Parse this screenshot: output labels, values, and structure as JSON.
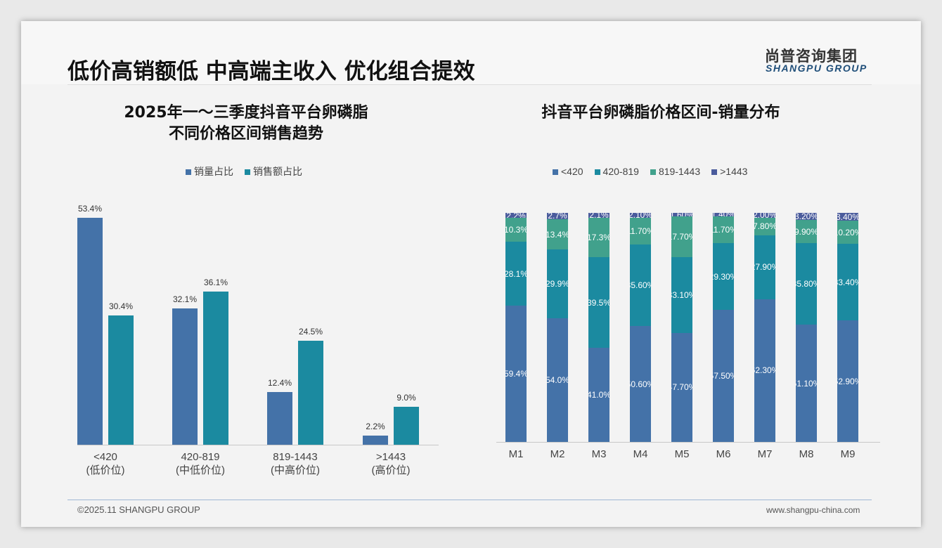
{
  "header": {
    "title": "低价高销额低 中高端主收入 优化组合提效",
    "logo_cn": "尚普咨询集团",
    "logo_en": "SHANGPU GROUP"
  },
  "footer": {
    "copyright": "©2025.11 SHANGPU GROUP",
    "url": "www.shangpu-china.com"
  },
  "colors": {
    "blue": "#4472a8",
    "teal": "#1b8aa0",
    "green": "#41a18c",
    "navy": "#4a5b9c"
  },
  "chart_data": [
    {
      "type": "bar",
      "title_line1": "2025年一～三季度抖音平台卵磷脂",
      "title_line2": "不同价格区间销售趋势",
      "categories": [
        "<420",
        "420-819",
        "819-1443",
        ">1443"
      ],
      "category_sub": [
        "(低价位)",
        "(中低价位)",
        "(中高价位)",
        "(高价位)"
      ],
      "series": [
        {
          "name": "销量占比",
          "values": [
            53.4,
            32.1,
            12.4,
            2.2
          ],
          "labels": [
            "53.4%",
            "32.1%",
            "12.4%",
            "2.2%"
          ]
        },
        {
          "name": "销售额占比",
          "values": [
            30.4,
            36.1,
            24.5,
            9.0
          ],
          "labels": [
            "30.4%",
            "36.1%",
            "24.5%",
            "9.0%"
          ]
        }
      ],
      "ylim": [
        0,
        60
      ]
    },
    {
      "type": "bar",
      "stacked": true,
      "title": "抖音平台卵磷脂价格区间-销量分布",
      "categories": [
        "M1",
        "M2",
        "M3",
        "M4",
        "M5",
        "M6",
        "M7",
        "M8",
        "M9"
      ],
      "series": [
        {
          "name": "<420",
          "values": [
            59.4,
            54.0,
            41.0,
            50.6,
            47.7,
            57.5,
            62.3,
            51.1,
            52.9
          ],
          "labels": [
            "59.4%",
            "54.0%",
            "41.0%",
            "50.60%",
            "47.70%",
            "57.50%",
            "62.30%",
            "51.10%",
            "52.90%"
          ]
        },
        {
          "name": "420-819",
          "values": [
            28.1,
            29.9,
            39.5,
            35.6,
            33.1,
            29.3,
            27.9,
            35.8,
            33.4
          ],
          "labels": [
            "28.1%",
            "29.9%",
            "39.5%",
            "35.60%",
            "33.10%",
            "29.30%",
            "27.90%",
            "35.80%",
            "33.40%"
          ]
        },
        {
          "name": "819-1443",
          "values": [
            10.3,
            13.4,
            17.3,
            11.7,
            17.7,
            11.7,
            7.8,
            9.9,
            10.2
          ],
          "labels": [
            "10.3%",
            "13.4%",
            "17.3%",
            "11.70%",
            "17.70%",
            "11.70%",
            "7.80%",
            "9.90%",
            "10.20%"
          ]
        },
        {
          "name": ">1443",
          "values": [
            2.2,
            2.7,
            2.1,
            2.1,
            1.6,
            1.4,
            2.0,
            3.2,
            3.4
          ],
          "labels": [
            "2.2%",
            "2.7%",
            "2.1%",
            "2.10%",
            "1.60%",
            "1.40%",
            "2.00%",
            "3.20%",
            "3.40%"
          ]
        }
      ],
      "ylim": [
        0,
        100
      ]
    }
  ]
}
